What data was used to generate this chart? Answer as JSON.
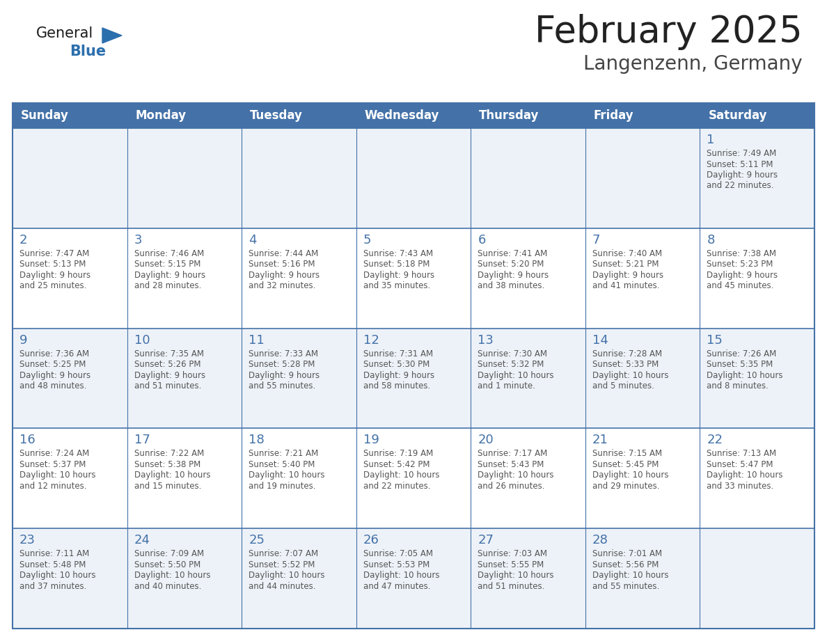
{
  "title": "February 2025",
  "subtitle": "Langenzenn, Germany",
  "days_of_week": [
    "Sunday",
    "Monday",
    "Tuesday",
    "Wednesday",
    "Thursday",
    "Friday",
    "Saturday"
  ],
  "header_bg": "#4472a8",
  "header_text": "#ffffff",
  "cell_bg_odd": "#edf2f8",
  "cell_bg_even": "#ffffff",
  "row_border_color": "#4472a8",
  "day_number_color": "#4472a8",
  "info_text_color": "#555555",
  "title_color": "#222222",
  "subtitle_color": "#444444",
  "logo_general_color": "#1a1a1a",
  "logo_blue_color": "#2c6fad",
  "weeks": [
    [
      null,
      null,
      null,
      null,
      null,
      null,
      {
        "day": 1,
        "sunrise": "7:49 AM",
        "sunset": "5:11 PM",
        "daylight": "9 hours and 22 minutes."
      }
    ],
    [
      {
        "day": 2,
        "sunrise": "7:47 AM",
        "sunset": "5:13 PM",
        "daylight": "9 hours and 25 minutes."
      },
      {
        "day": 3,
        "sunrise": "7:46 AM",
        "sunset": "5:15 PM",
        "daylight": "9 hours and 28 minutes."
      },
      {
        "day": 4,
        "sunrise": "7:44 AM",
        "sunset": "5:16 PM",
        "daylight": "9 hours and 32 minutes."
      },
      {
        "day": 5,
        "sunrise": "7:43 AM",
        "sunset": "5:18 PM",
        "daylight": "9 hours and 35 minutes."
      },
      {
        "day": 6,
        "sunrise": "7:41 AM",
        "sunset": "5:20 PM",
        "daylight": "9 hours and 38 minutes."
      },
      {
        "day": 7,
        "sunrise": "7:40 AM",
        "sunset": "5:21 PM",
        "daylight": "9 hours and 41 minutes."
      },
      {
        "day": 8,
        "sunrise": "7:38 AM",
        "sunset": "5:23 PM",
        "daylight": "9 hours and 45 minutes."
      }
    ],
    [
      {
        "day": 9,
        "sunrise": "7:36 AM",
        "sunset": "5:25 PM",
        "daylight": "9 hours and 48 minutes."
      },
      {
        "day": 10,
        "sunrise": "7:35 AM",
        "sunset": "5:26 PM",
        "daylight": "9 hours and 51 minutes."
      },
      {
        "day": 11,
        "sunrise": "7:33 AM",
        "sunset": "5:28 PM",
        "daylight": "9 hours and 55 minutes."
      },
      {
        "day": 12,
        "sunrise": "7:31 AM",
        "sunset": "5:30 PM",
        "daylight": "9 hours and 58 minutes."
      },
      {
        "day": 13,
        "sunrise": "7:30 AM",
        "sunset": "5:32 PM",
        "daylight": "10 hours and 1 minute."
      },
      {
        "day": 14,
        "sunrise": "7:28 AM",
        "sunset": "5:33 PM",
        "daylight": "10 hours and 5 minutes."
      },
      {
        "day": 15,
        "sunrise": "7:26 AM",
        "sunset": "5:35 PM",
        "daylight": "10 hours and 8 minutes."
      }
    ],
    [
      {
        "day": 16,
        "sunrise": "7:24 AM",
        "sunset": "5:37 PM",
        "daylight": "10 hours and 12 minutes."
      },
      {
        "day": 17,
        "sunrise": "7:22 AM",
        "sunset": "5:38 PM",
        "daylight": "10 hours and 15 minutes."
      },
      {
        "day": 18,
        "sunrise": "7:21 AM",
        "sunset": "5:40 PM",
        "daylight": "10 hours and 19 minutes."
      },
      {
        "day": 19,
        "sunrise": "7:19 AM",
        "sunset": "5:42 PM",
        "daylight": "10 hours and 22 minutes."
      },
      {
        "day": 20,
        "sunrise": "7:17 AM",
        "sunset": "5:43 PM",
        "daylight": "10 hours and 26 minutes."
      },
      {
        "day": 21,
        "sunrise": "7:15 AM",
        "sunset": "5:45 PM",
        "daylight": "10 hours and 29 minutes."
      },
      {
        "day": 22,
        "sunrise": "7:13 AM",
        "sunset": "5:47 PM",
        "daylight": "10 hours and 33 minutes."
      }
    ],
    [
      {
        "day": 23,
        "sunrise": "7:11 AM",
        "sunset": "5:48 PM",
        "daylight": "10 hours and 37 minutes."
      },
      {
        "day": 24,
        "sunrise": "7:09 AM",
        "sunset": "5:50 PM",
        "daylight": "10 hours and 40 minutes."
      },
      {
        "day": 25,
        "sunrise": "7:07 AM",
        "sunset": "5:52 PM",
        "daylight": "10 hours and 44 minutes."
      },
      {
        "day": 26,
        "sunrise": "7:05 AM",
        "sunset": "5:53 PM",
        "daylight": "10 hours and 47 minutes."
      },
      {
        "day": 27,
        "sunrise": "7:03 AM",
        "sunset": "5:55 PM",
        "daylight": "10 hours and 51 minutes."
      },
      {
        "day": 28,
        "sunrise": "7:01 AM",
        "sunset": "5:56 PM",
        "daylight": "10 hours and 55 minutes."
      },
      null
    ]
  ]
}
